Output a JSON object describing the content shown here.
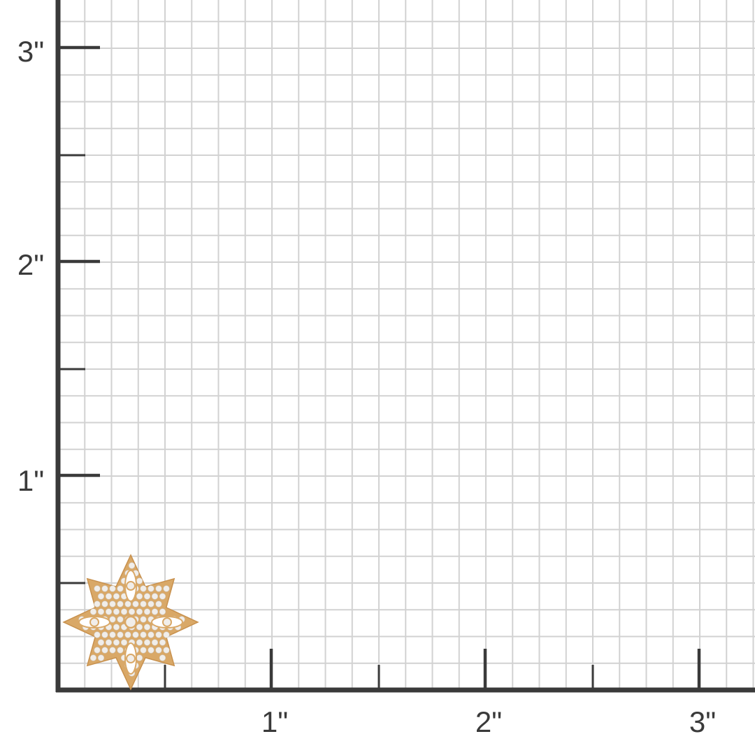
{
  "scale": {
    "unit": "inch",
    "x_labels": [
      "1\"",
      "2\"",
      "3\""
    ],
    "y_labels": [
      "1\"",
      "2\"",
      "3\""
    ],
    "subdivisions_per_inch": 8
  },
  "colors": {
    "axis": "#3a3a3a",
    "grid": "#d2d2d2",
    "metal": "#d9a867",
    "stone": "#f1eeea"
  },
  "product": {
    "icon": "eight-point-star-diamond-pendant",
    "width_in": 0.62,
    "height_in": 0.62
  }
}
